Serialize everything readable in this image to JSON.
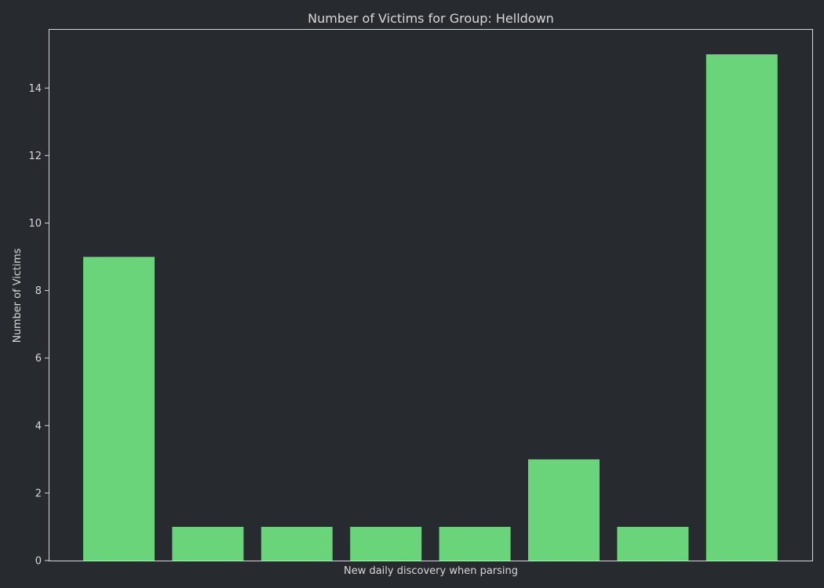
{
  "chart_data": {
    "type": "bar",
    "title": "Number of Victims for Group: Helldown",
    "xlabel": "New daily discovery when parsing",
    "ylabel": "Number of Victims",
    "categories": [
      "",
      "",
      "",
      "",
      "",
      "",
      "",
      ""
    ],
    "values": [
      9,
      1,
      1,
      1,
      1,
      3,
      1,
      15
    ],
    "ylim": [
      0,
      15.75
    ],
    "yticks": [
      0,
      2,
      4,
      6,
      8,
      10,
      12,
      14
    ],
    "grid": false,
    "legend": "none",
    "colors": {
      "bar": "#6ad47a",
      "background": "#272a2f",
      "axes": "#d8d8d8",
      "text": "#d8d8d8"
    }
  }
}
